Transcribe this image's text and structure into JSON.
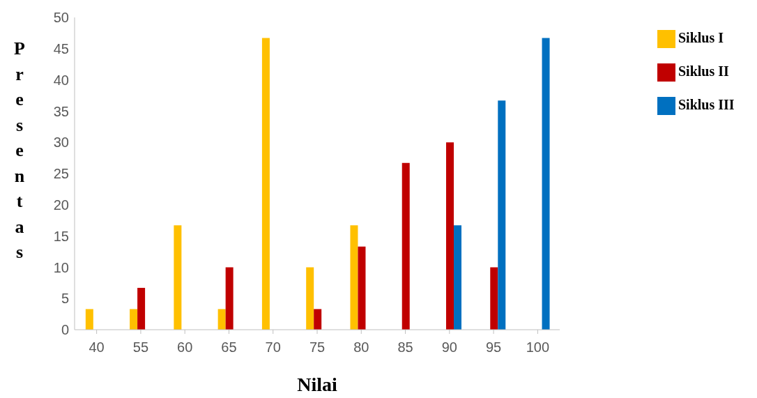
{
  "chart_data": {
    "type": "bar",
    "xlabel": "Nilai",
    "ylabel": "Presentas",
    "categories": [
      "40",
      "55",
      "60",
      "65",
      "70",
      "75",
      "80",
      "85",
      "90",
      "95",
      "100"
    ],
    "series": [
      {
        "name": "Siklus I",
        "color": "#ffc000",
        "values": [
          3.3,
          3.3,
          16.7,
          3.3,
          46.7,
          10,
          16.7,
          0,
          0,
          0,
          0
        ]
      },
      {
        "name": "Siklus II",
        "color": "#c00000",
        "values": [
          0,
          6.7,
          0,
          10,
          0,
          3.3,
          13.3,
          26.7,
          30,
          10,
          0
        ]
      },
      {
        "name": "Siklus III",
        "color": "#0070c0",
        "values": [
          0,
          0,
          0,
          0,
          0,
          0,
          0,
          0,
          16.7,
          36.7,
          46.7
        ]
      }
    ],
    "ylim": [
      0,
      50
    ],
    "yticks": [
      0,
      5,
      10,
      15,
      20,
      25,
      30,
      35,
      40,
      45,
      50
    ],
    "grid": false,
    "legend": "top right"
  }
}
